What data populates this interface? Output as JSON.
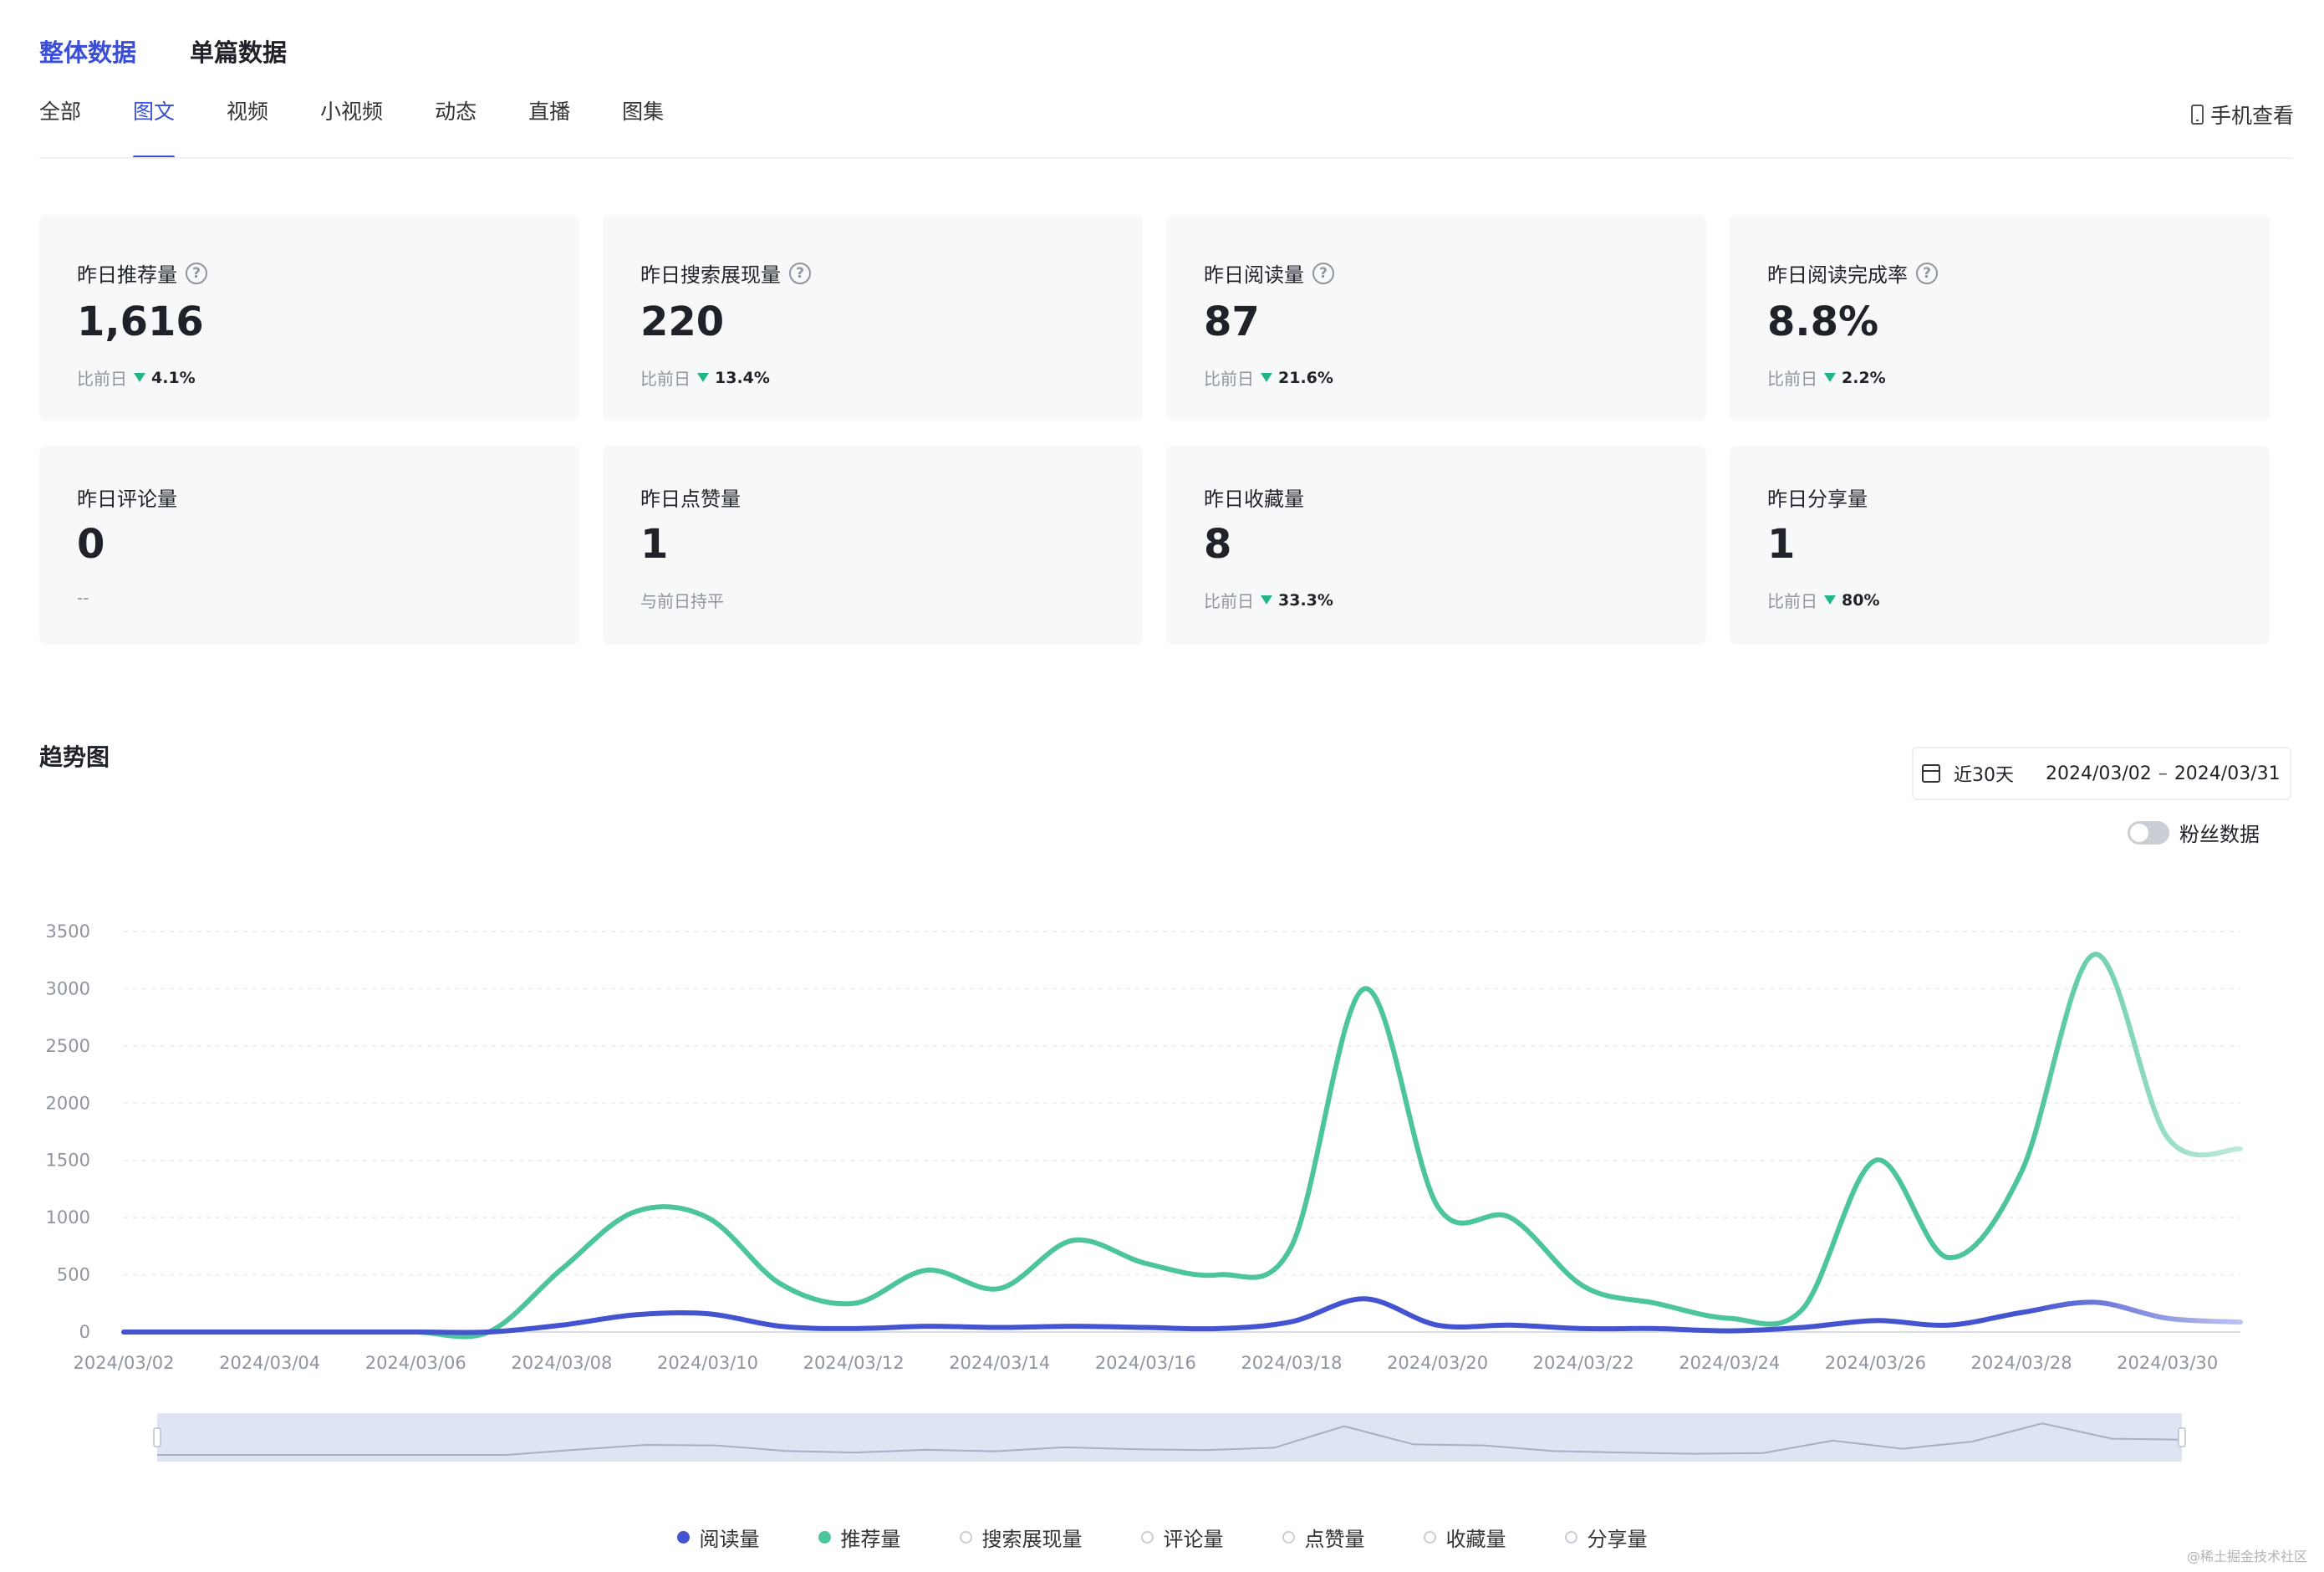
{
  "top_tabs": [
    "整体数据",
    "单篇数据"
  ],
  "sub_tabs": [
    "全部",
    "图文",
    "视频",
    "小视频",
    "动态",
    "直播",
    "图集"
  ],
  "mobile_view_label": "手机查看",
  "cards": [
    {
      "label": "昨日推荐量",
      "help": true,
      "value": "1,616",
      "compare_prefix": "比前日",
      "compare_pct": "4.1%",
      "trend": "down"
    },
    {
      "label": "昨日搜索展现量",
      "help": true,
      "value": "220",
      "compare_prefix": "比前日",
      "compare_pct": "13.4%",
      "trend": "down"
    },
    {
      "label": "昨日阅读量",
      "help": true,
      "value": "87",
      "compare_prefix": "比前日",
      "compare_pct": "21.6%",
      "trend": "down"
    },
    {
      "label": "昨日阅读完成率",
      "help": true,
      "value": "8.8%",
      "compare_prefix": "比前日",
      "compare_pct": "2.2%",
      "trend": "down"
    },
    {
      "label": "昨日评论量",
      "help": false,
      "value": "0",
      "compare_prefix": "--",
      "compare_pct": "",
      "trend": "none"
    },
    {
      "label": "昨日点赞量",
      "help": false,
      "value": "1",
      "compare_prefix": "与前日持平",
      "compare_pct": "",
      "trend": "none"
    },
    {
      "label": "昨日收藏量",
      "help": false,
      "value": "8",
      "compare_prefix": "比前日",
      "compare_pct": "33.3%",
      "trend": "down"
    },
    {
      "label": "昨日分享量",
      "help": false,
      "value": "1",
      "compare_prefix": "比前日",
      "compare_pct": "80%",
      "trend": "down"
    }
  ],
  "trend": {
    "title": "趋势图",
    "date_range_label": "近30天",
    "date_start": "2024/03/02",
    "date_end": "2024/03/31",
    "fans_toggle_label": "粉丝数据",
    "fans_toggle_on": false
  },
  "legend": [
    {
      "name": "阅读量",
      "color": "#4454d0",
      "active": true
    },
    {
      "name": "推荐量",
      "color": "#4cc49c",
      "active": true
    },
    {
      "name": "搜索展现量",
      "color": "#c9cdd4",
      "active": false
    },
    {
      "name": "评论量",
      "color": "#c9cdd4",
      "active": false
    },
    {
      "name": "点赞量",
      "color": "#c9cdd4",
      "active": false
    },
    {
      "name": "收藏量",
      "color": "#c9cdd4",
      "active": false
    },
    {
      "name": "分享量",
      "color": "#c9cdd4",
      "active": false
    }
  ],
  "watermark": "@稀土掘金技术社区",
  "chart_data": {
    "type": "line",
    "x": [
      "2024/03/02",
      "2024/03/03",
      "2024/03/04",
      "2024/03/05",
      "2024/03/06",
      "2024/03/07",
      "2024/03/08",
      "2024/03/09",
      "2024/03/10",
      "2024/03/11",
      "2024/03/12",
      "2024/03/13",
      "2024/03/14",
      "2024/03/15",
      "2024/03/16",
      "2024/03/17",
      "2024/03/18",
      "2024/03/19",
      "2024/03/20",
      "2024/03/21",
      "2024/03/22",
      "2024/03/23",
      "2024/03/24",
      "2024/03/25",
      "2024/03/26",
      "2024/03/27",
      "2024/03/28",
      "2024/03/29",
      "2024/03/30",
      "2024/03/31"
    ],
    "x_tick_labels": [
      "2024/03/02",
      "2024/03/04",
      "2024/03/06",
      "2024/03/08",
      "2024/03/10",
      "2024/03/12",
      "2024/03/14",
      "2024/03/16",
      "2024/03/18",
      "2024/03/20",
      "2024/03/22",
      "2024/03/24",
      "2024/03/26",
      "2024/03/28",
      "2024/03/30"
    ],
    "ylim": [
      0,
      3500
    ],
    "y_ticks": [
      0,
      500,
      1000,
      1500,
      2000,
      2500,
      3000,
      3500
    ],
    "grid": true,
    "series": [
      {
        "name": "推荐量",
        "color": "#4cc49c",
        "values": [
          0,
          0,
          0,
          0,
          0,
          0,
          550,
          1050,
          1000,
          420,
          250,
          540,
          380,
          800,
          600,
          500,
          750,
          3000,
          1100,
          1000,
          400,
          250,
          120,
          200,
          1500,
          650,
          1400,
          3300,
          1700,
          1600
        ]
      },
      {
        "name": "阅读量",
        "color": "#4454d0",
        "values": [
          0,
          0,
          0,
          0,
          0,
          0,
          60,
          150,
          160,
          50,
          30,
          50,
          40,
          50,
          40,
          30,
          90,
          290,
          60,
          60,
          30,
          30,
          10,
          40,
          100,
          60,
          170,
          260,
          120,
          87
        ]
      }
    ]
  }
}
